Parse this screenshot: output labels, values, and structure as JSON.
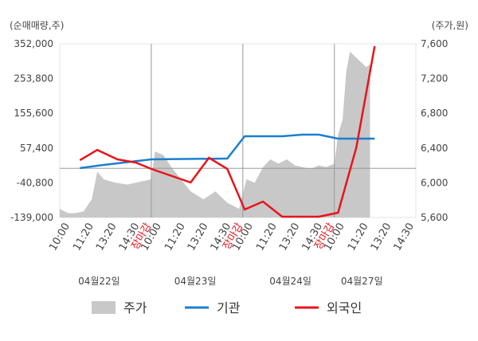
{
  "chart_data": {
    "type": "line",
    "y_label": "(순매매량,주)",
    "y2_label": "(주가,원)",
    "xlim": [
      0,
      3.89
    ],
    "xticks": [
      {
        "value": 0.11,
        "label": "10:00"
      },
      {
        "value": 0.37,
        "label": "11:20"
      },
      {
        "value": 0.62,
        "label": "13:20"
      },
      {
        "value": 0.87,
        "label": "14:30"
      },
      {
        "value": 1.0,
        "label": "장마감",
        "color": "#e8141c"
      },
      {
        "value": 1.11,
        "label": "10:00"
      },
      {
        "value": 1.37,
        "label": "11:20"
      },
      {
        "value": 1.62,
        "label": "13:20"
      },
      {
        "value": 1.87,
        "label": "14:30"
      },
      {
        "value": 2.0,
        "label": "장마감",
        "color": "#e8141c"
      },
      {
        "value": 2.11,
        "label": "10:00"
      },
      {
        "value": 2.37,
        "label": "11:20"
      },
      {
        "value": 2.62,
        "label": "13:20"
      },
      {
        "value": 2.87,
        "label": "14:30"
      },
      {
        "value": 3.0,
        "label": "장마감",
        "color": "#e8141c"
      },
      {
        "value": 3.11,
        "label": "10:00"
      },
      {
        "value": 3.37,
        "label": "11:20"
      },
      {
        "value": 3.62,
        "label": "13:20"
      },
      {
        "value": 3.87,
        "label": "14:30"
      }
    ],
    "day_dividers": [
      1,
      2,
      3
    ],
    "date_labels": [
      {
        "value": 0.43,
        "label": "04월22일"
      },
      {
        "value": 1.48,
        "label": "04월23일"
      },
      {
        "value": 2.52,
        "label": "04월24일"
      },
      {
        "value": 3.3,
        "label": "04월27일"
      }
    ],
    "ylim": [
      -139000,
      352000
    ],
    "yticks": [
      {
        "value": 352000,
        "label": "352,000"
      },
      {
        "value": 253800,
        "label": "253,800"
      },
      {
        "value": 155600,
        "label": "155,600"
      },
      {
        "value": 57400,
        "label": "57,400"
      },
      {
        "value": -40800,
        "label": "-40,800"
      },
      {
        "value": -139000,
        "label": "-139,000"
      }
    ],
    "y2lim": [
      5600,
      7600
    ],
    "y2ticks": [
      {
        "value": 7600,
        "label": "7,600"
      },
      {
        "value": 7200,
        "label": "7,200"
      },
      {
        "value": 6800,
        "label": "6,800"
      },
      {
        "value": 6400,
        "label": "6,400"
      },
      {
        "value": 6000,
        "label": "6,000"
      },
      {
        "value": 5600,
        "label": "5,600"
      }
    ],
    "series": [
      {
        "name": "주가",
        "type": "area",
        "axis": "y2",
        "color": "#c8c8c8",
        "x": [
          0,
          0.09,
          0.17,
          0.26,
          0.35,
          0.41,
          0.48,
          0.61,
          0.74,
          0.87,
          1.0,
          1.04,
          1.13,
          1.22,
          1.3,
          1.43,
          1.57,
          1.7,
          1.83,
          1.96,
          2.04,
          2.13,
          2.22,
          2.3,
          2.39,
          2.48,
          2.57,
          2.65,
          2.74,
          2.83,
          2.91,
          3.0,
          3.04,
          3.09,
          3.13,
          3.17,
          3.26,
          3.35,
          3.39
        ],
        "values": [
          5700,
          5650,
          5650,
          5670,
          5810,
          6130,
          6040,
          6000,
          5980,
          6010,
          6040,
          6360,
          6320,
          6180,
          6070,
          5900,
          5810,
          5900,
          5770,
          5700,
          6040,
          6000,
          6180,
          6270,
          6220,
          6270,
          6200,
          6180,
          6160,
          6200,
          6180,
          6220,
          6550,
          6730,
          7280,
          7510,
          7420,
          7330,
          7370
        ]
      },
      {
        "name": "기관",
        "type": "line",
        "color": "#1a7fd0",
        "x": [
          0.22,
          0.48,
          1.0,
          1.83,
          2.02,
          2.43,
          2.65,
          2.83,
          3.04,
          3.44
        ],
        "values": [
          600,
          9700,
          25400,
          27700,
          90700,
          90700,
          95200,
          95200,
          84000,
          84000
        ]
      },
      {
        "name": "외국인",
        "type": "line",
        "color": "#e8141c",
        "x": [
          0.22,
          0.41,
          0.63,
          0.83,
          1.0,
          1.43,
          1.63,
          1.83,
          2.02,
          2.22,
          2.43,
          2.83,
          3.04,
          3.24,
          3.44
        ],
        "values": [
          23000,
          52000,
          25400,
          16400,
          -1600,
          -39900,
          29900,
          -1600,
          -116500,
          -94000,
          -136800,
          -136800,
          -125500,
          59200,
          345200
        ]
      }
    ]
  }
}
